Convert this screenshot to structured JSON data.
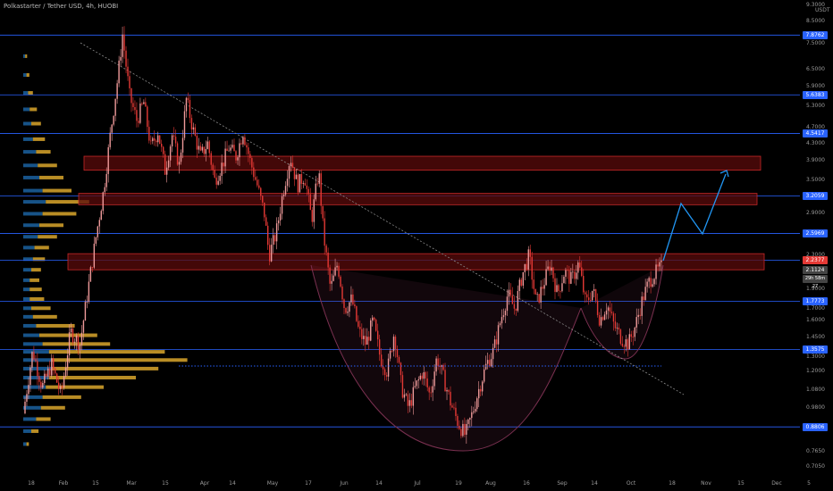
{
  "header": {
    "title": "Polkastarter / Tether USD, 4h, HUOBI"
  },
  "axis": {
    "unit": "USDT"
  },
  "colors": {
    "bg": "#000000",
    "hline": "#2962ff",
    "zone_fill": "#5a0b0b",
    "zone_border": "#c62828",
    "up": "#ef9a9a",
    "down": "#e53935",
    "projection": "#2196f3",
    "cup": "#7a3050",
    "vp_up": "#d9a62b",
    "vp_down": "#1f6fb6",
    "badge_blue": "#2962ff",
    "badge_red": "#e53935"
  },
  "chart_data": {
    "type": "candlestick",
    "title": "Polkastarter / Tether USD, 4h, HUOBI",
    "scale": "log",
    "ylim": [
      0.68,
      9.3
    ],
    "x_tick_labels": [
      "18",
      "Feb",
      "15",
      "Mar",
      "15",
      "Apr",
      "14",
      "May",
      "17",
      "Jun",
      "14",
      "Jul",
      "19",
      "Aug",
      "16",
      "Sep",
      "14",
      "Oct",
      "18",
      "Nov",
      "15",
      "Dec",
      "5"
    ],
    "y_tick_labels": [
      "9.3000",
      "8.5000",
      "7.5000",
      "6.5000",
      "5.9000",
      "5.3000",
      "4.7000",
      "4.3000",
      "3.9000",
      "3.5000",
      "3.2000",
      "2.9000",
      "2.6000",
      "2.3000",
      "2.1000",
      "1.9000",
      "1.7000",
      "1.6000",
      "1.4500",
      "1.3000",
      "1.2000",
      "1.0800",
      "0.9800",
      "0.8830",
      "0.7650",
      "0.7050"
    ],
    "horizontal_levels": [
      7.8762,
      5.6383,
      4.5417,
      3.2059,
      2.5969,
      2.2377,
      1.7773,
      1.3575,
      0.8806
    ],
    "price_badges": [
      {
        "label": "7.8762",
        "value": 7.8762,
        "kind": "blue"
      },
      {
        "label": "5.6383",
        "value": 5.6383,
        "kind": "blue"
      },
      {
        "label": "4.5417",
        "value": 4.5417,
        "kind": "blue"
      },
      {
        "label": "3.2059",
        "value": 3.2059,
        "kind": "blue"
      },
      {
        "label": "2.5969",
        "value": 2.5969,
        "kind": "blue"
      },
      {
        "label": "2.2377",
        "value": 2.2377,
        "kind": "red"
      },
      {
        "label": "2.1124",
        "value": 2.1124,
        "kind": "grey"
      },
      {
        "label": "1.7773",
        "value": 1.7773,
        "kind": "blue"
      },
      {
        "label": "1.3575",
        "value": 1.3575,
        "kind": "blue"
      },
      {
        "label": "0.8806",
        "value": 0.8806,
        "kind": "blue"
      }
    ],
    "countdown": "29h 58m 27",
    "price_path": [
      [
        0,
        0.95
      ],
      [
        2,
        1.35
      ],
      [
        4,
        1.1
      ],
      [
        6,
        1.25
      ],
      [
        8,
        1.05
      ],
      [
        10,
        1.5
      ],
      [
        12,
        1.4
      ],
      [
        14,
        2.0
      ],
      [
        15.5,
        2.6
      ],
      [
        17,
        3.3
      ],
      [
        18.5,
        4.6
      ],
      [
        20,
        6.2
      ],
      [
        21,
        7.9
      ],
      [
        22.5,
        5.6
      ],
      [
        24,
        4.9
      ],
      [
        25.5,
        5.4
      ],
      [
        27,
        4.2
      ],
      [
        28.5,
        4.6
      ],
      [
        30,
        3.7
      ],
      [
        31.5,
        4.5
      ],
      [
        33,
        3.8
      ],
      [
        34.5,
        5.5
      ],
      [
        36,
        4.6
      ],
      [
        37.5,
        4.0
      ],
      [
        39,
        4.3
      ],
      [
        40.5,
        3.5
      ],
      [
        42,
        3.8
      ],
      [
        43.5,
        4.2
      ],
      [
        45,
        4.0
      ],
      [
        46.5,
        4.6
      ],
      [
        48,
        3.9
      ],
      [
        49.5,
        3.4
      ],
      [
        51,
        2.9
      ],
      [
        52,
        2.3
      ],
      [
        53.5,
        2.6
      ],
      [
        55,
        3.3
      ],
      [
        56.5,
        4.0
      ],
      [
        58,
        3.4
      ],
      [
        59.5,
        3.6
      ],
      [
        61,
        2.8
      ],
      [
        62.5,
        3.7
      ],
      [
        63.5,
        2.6
      ],
      [
        65,
        1.9
      ],
      [
        66.5,
        2.2
      ],
      [
        68,
        1.7
      ],
      [
        69.5,
        1.8
      ],
      [
        71,
        1.5
      ],
      [
        72.5,
        1.4
      ],
      [
        74,
        1.6
      ],
      [
        75.5,
        1.3
      ],
      [
        77,
        1.2
      ],
      [
        78.5,
        1.5
      ],
      [
        80,
        1.1
      ],
      [
        81.5,
        0.98
      ],
      [
        83,
        1.1
      ],
      [
        84.5,
        1.2
      ],
      [
        86,
        1.05
      ],
      [
        87.5,
        1.3
      ],
      [
        89,
        1.15
      ],
      [
        90.5,
        1.0
      ],
      [
        92,
        0.9
      ],
      [
        93.5,
        0.84
      ],
      [
        95,
        0.95
      ],
      [
        96.5,
        1.1
      ],
      [
        98,
        1.25
      ],
      [
        99.5,
        1.35
      ],
      [
        101,
        1.6
      ],
      [
        102.5,
        1.85
      ],
      [
        104,
        1.7
      ],
      [
        105.5,
        2.05
      ],
      [
        107,
        2.3
      ],
      [
        108.5,
        1.75
      ],
      [
        110,
        1.95
      ],
      [
        111.5,
        2.2
      ],
      [
        113,
        1.85
      ],
      [
        114.5,
        2.1
      ],
      [
        116,
        2.0
      ],
      [
        117.5,
        2.2
      ],
      [
        119,
        1.75
      ],
      [
        120.5,
        1.9
      ],
      [
        122,
        1.6
      ],
      [
        123.5,
        1.75
      ],
      [
        125,
        1.55
      ],
      [
        126.5,
        1.45
      ],
      [
        128,
        1.4
      ],
      [
        129.5,
        1.55
      ],
      [
        131,
        1.8
      ],
      [
        132.5,
        2.0
      ],
      [
        134,
        2.1
      ],
      [
        135,
        2.15
      ]
    ],
    "volume_profile": [
      {
        "price": 0.8,
        "up": 0.5,
        "down": 1.0
      },
      {
        "price": 0.86,
        "up": 1.5,
        "down": 2.5
      },
      {
        "price": 0.92,
        "up": 3.0,
        "down": 4.0
      },
      {
        "price": 0.98,
        "up": 5.0,
        "down": 5.5
      },
      {
        "price": 1.04,
        "up": 8.0,
        "down": 6.0
      },
      {
        "price": 1.1,
        "up": 12.0,
        "down": 7.0
      },
      {
        "price": 1.16,
        "up": 18.0,
        "down": 8.0
      },
      {
        "price": 1.22,
        "up": 22.0,
        "down": 9.0
      },
      {
        "price": 1.28,
        "up": 28.0,
        "down": 9.0
      },
      {
        "price": 1.34,
        "up": 24.0,
        "down": 8.0
      },
      {
        "price": 1.4,
        "up": 14.0,
        "down": 6.0
      },
      {
        "price": 1.47,
        "up": 12.0,
        "down": 5.0
      },
      {
        "price": 1.55,
        "up": 8.0,
        "down": 4.0
      },
      {
        "price": 1.63,
        "up": 5.0,
        "down": 3.0
      },
      {
        "price": 1.71,
        "up": 4.0,
        "down": 2.5
      },
      {
        "price": 1.8,
        "up": 3.0,
        "down": 2.0
      },
      {
        "price": 1.9,
        "up": 2.5,
        "down": 2.0
      },
      {
        "price": 2.0,
        "up": 2.0,
        "down": 2.0
      },
      {
        "price": 2.12,
        "up": 2.0,
        "down": 2.5
      },
      {
        "price": 2.25,
        "up": 2.5,
        "down": 3.0
      },
      {
        "price": 2.4,
        "up": 3.0,
        "down": 3.5
      },
      {
        "price": 2.55,
        "up": 4.0,
        "down": 4.5
      },
      {
        "price": 2.72,
        "up": 5.0,
        "down": 5.0
      },
      {
        "price": 2.9,
        "up": 7.0,
        "down": 6.0
      },
      {
        "price": 3.1,
        "up": 9.0,
        "down": 7.0
      },
      {
        "price": 3.3,
        "up": 6.0,
        "down": 6.0
      },
      {
        "price": 3.55,
        "up": 5.0,
        "down": 5.0
      },
      {
        "price": 3.8,
        "up": 4.0,
        "down": 4.5
      },
      {
        "price": 4.1,
        "up": 3.0,
        "down": 4.0
      },
      {
        "price": 4.4,
        "up": 2.5,
        "down": 3.0
      },
      {
        "price": 4.8,
        "up": 2.0,
        "down": 2.5
      },
      {
        "price": 5.2,
        "up": 1.5,
        "down": 2.0
      },
      {
        "price": 5.7,
        "up": 1.0,
        "down": 1.5
      },
      {
        "price": 6.3,
        "up": 0.6,
        "down": 1.0
      },
      {
        "price": 7.0,
        "up": 0.4,
        "down": 0.6
      }
    ],
    "zones": [
      {
        "low": 3.7,
        "high": 4.0,
        "x0": 0,
        "x1": 160
      },
      {
        "low": 3.05,
        "high": 3.25,
        "x0": 0,
        "x1": 160
      },
      {
        "low": 2.12,
        "high": 2.32,
        "x0": 0,
        "x1": 160
      }
    ]
  }
}
